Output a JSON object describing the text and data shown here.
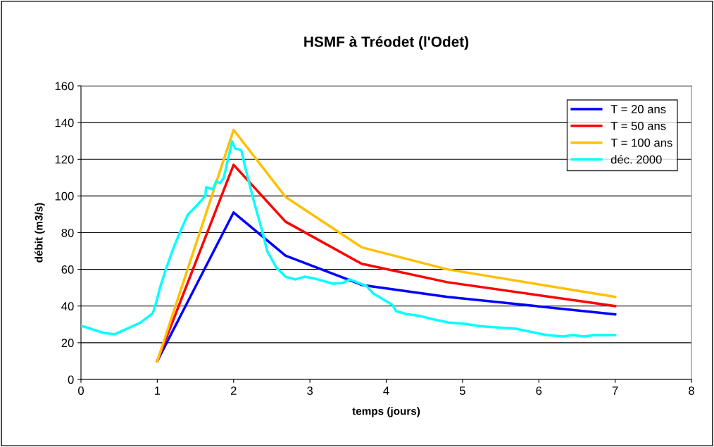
{
  "chart_data": {
    "type": "line",
    "title": "HSMF à Tréodet (l'Odet)",
    "xlabel": "temps (jours)",
    "ylabel": "débit (m3/s)",
    "xlim": [
      0,
      8
    ],
    "xticks": [
      0,
      1,
      2,
      3,
      4,
      5,
      6,
      7,
      8
    ],
    "ylim": [
      0,
      160
    ],
    "yticks": [
      0,
      20,
      40,
      60,
      80,
      100,
      120,
      140,
      160
    ],
    "grid": "y",
    "legend": "top right",
    "marker": "none",
    "line_style": "solid",
    "series": [
      {
        "name": "T = 20 ans",
        "color": "#0000ff",
        "x": [
          1,
          2,
          2.68,
          3.69,
          4.8,
          7
        ],
        "values": [
          10,
          91,
          67.5,
          51.4,
          45,
          35.5
        ]
      },
      {
        "name": "T = 50 ans",
        "color": "#ff0000",
        "x": [
          1,
          2,
          2.68,
          3.68,
          4.8,
          7
        ],
        "values": [
          10,
          117,
          86,
          63,
          53,
          40
        ]
      },
      {
        "name": "T = 100 ans",
        "color": "#ffc000",
        "x": [
          1,
          2,
          2.68,
          3.68,
          4.8,
          7
        ],
        "values": [
          10,
          136,
          99.5,
          72,
          60,
          45
        ]
      },
      {
        "name": "déc. 2000",
        "color": "#00ffff",
        "x": [
          0,
          0.07,
          0.3,
          0.44,
          0.6,
          0.78,
          0.94,
          0.99,
          1.04,
          1.12,
          1.22,
          1.31,
          1.4,
          1.49,
          1.59,
          1.63,
          1.64,
          1.73,
          1.77,
          1.82,
          1.87,
          1.94,
          1.98,
          2.02,
          2.1,
          2.15,
          2.26,
          2.38,
          2.44,
          2.56,
          2.68,
          2.81,
          2.93,
          3.06,
          3.3,
          3.43,
          3.52,
          3.74,
          3.83,
          4.08,
          4.13,
          4.26,
          4.45,
          4.59,
          4.82,
          5.03,
          5.24,
          5.7,
          6.1,
          6.32,
          6.44,
          6.6,
          6.72,
          7
        ],
        "values": [
          29.2,
          28.4,
          25.3,
          24.6,
          27.6,
          31,
          36,
          42.6,
          50.6,
          61,
          72.5,
          81.4,
          89.8,
          93.6,
          98.2,
          100,
          104.8,
          103.6,
          108,
          107,
          109.7,
          122.4,
          129.7,
          125.9,
          125,
          116,
          98,
          80,
          70,
          61,
          56,
          54.5,
          56,
          55,
          52.2,
          52.6,
          54.5,
          51,
          46.8,
          40.7,
          37.2,
          35.7,
          34.5,
          33,
          31,
          30.3,
          29,
          27.6,
          24.2,
          23.4,
          24.2,
          23.4,
          24.2,
          24.2
        ]
      }
    ]
  }
}
